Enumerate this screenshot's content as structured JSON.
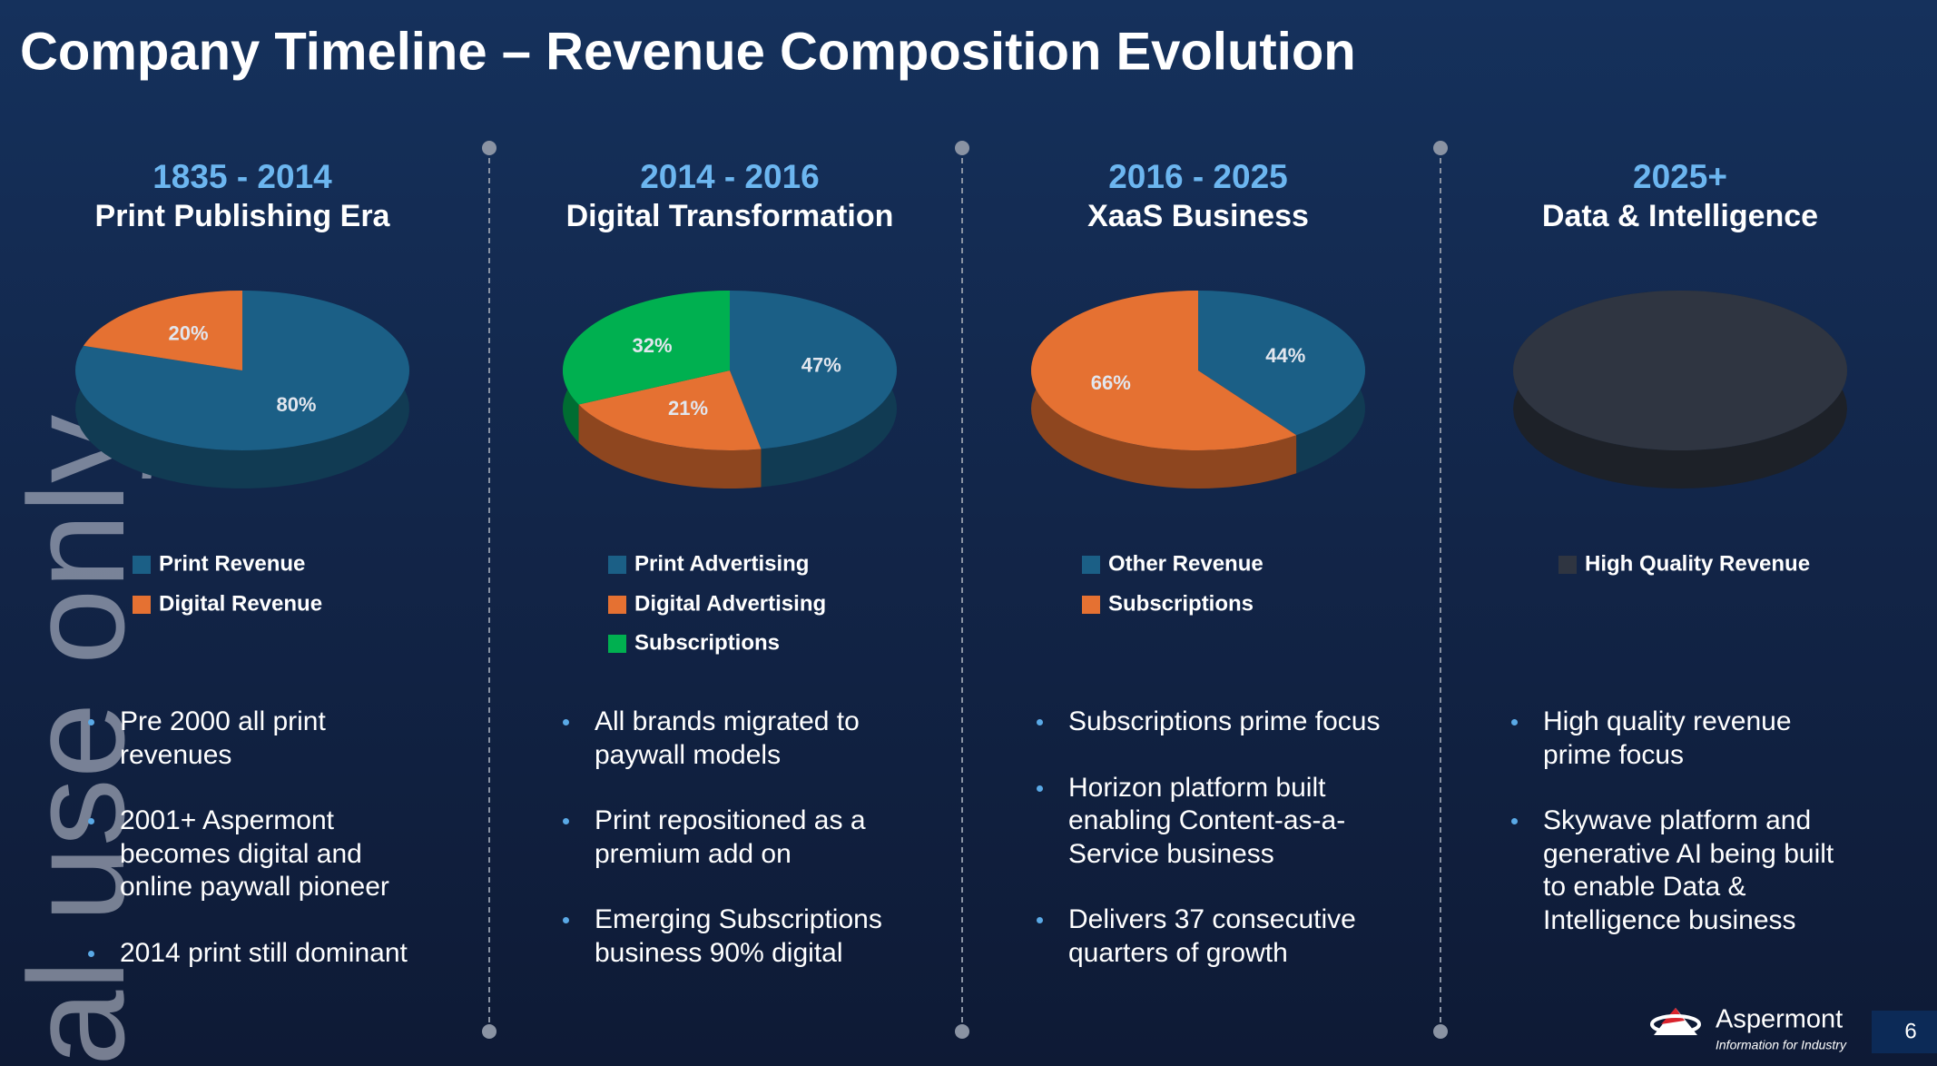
{
  "title": "Company Timeline – Revenue Composition Evolution",
  "watermark": "al use only",
  "chart_data": [
    {
      "type": "pie",
      "title": "1835 - 2014",
      "subtitle": "Print Publishing Era",
      "categories": [
        "Print Revenue",
        "Digital Revenue"
      ],
      "values": [
        80,
        20
      ],
      "value_labels": [
        "80%",
        "20%"
      ],
      "colors": [
        "#1b5f86",
        "#e57132"
      ]
    },
    {
      "type": "pie",
      "title": "2014 - 2016",
      "subtitle": "Digital Transformation",
      "categories": [
        "Print Advertising",
        "Digital Advertising",
        "Subscriptions"
      ],
      "values": [
        47,
        21,
        32
      ],
      "value_labels": [
        "47%",
        "21%",
        "32%"
      ],
      "colors": [
        "#1b5f86",
        "#e57132",
        "#00b050"
      ]
    },
    {
      "type": "pie",
      "title": "2016 - 2025",
      "subtitle": "XaaS Business",
      "categories": [
        "Other Revenue",
        "Subscriptions"
      ],
      "values": [
        44,
        66
      ],
      "value_labels": [
        "44%",
        "66%"
      ],
      "colors": [
        "#1b5f86",
        "#e57132"
      ]
    },
    {
      "type": "pie",
      "title": "2025+",
      "subtitle": "Data & Intelligence",
      "categories": [
        "High Quality Revenue"
      ],
      "values": [
        100
      ],
      "colors": [
        "#2f3541"
      ]
    }
  ],
  "columns": [
    {
      "bullets": [
        "Pre 2000 all print revenues",
        "2001+ Aspermont becomes digital and online paywall pioneer",
        "2014 print still dominant"
      ]
    },
    {
      "bullets": [
        "All brands migrated to paywall models",
        "Print repositioned as a premium add on",
        "Emerging Subscriptions business 90% digital"
      ]
    },
    {
      "bullets": [
        "Subscriptions prime focus",
        "Horizon platform built enabling Content-as-a-Service business",
        "Delivers 37 consecutive quarters of growth"
      ]
    },
    {
      "bullets": [
        "High quality revenue prime focus",
        "Skywave platform and generative AI being built to enable Data & Intelligence business"
      ]
    }
  ],
  "footer": {
    "brand": "Aspermont",
    "tagline": "Information for Industry",
    "page": "6"
  }
}
